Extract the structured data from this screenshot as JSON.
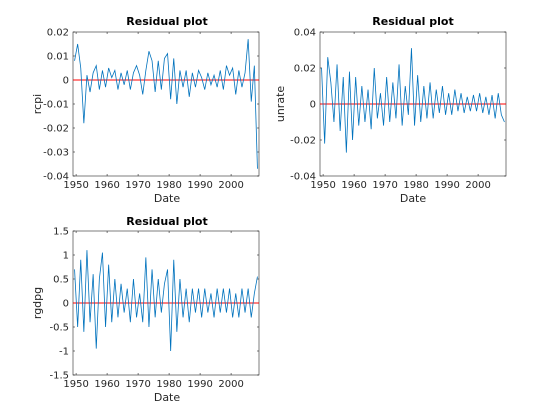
{
  "chart_data": [
    {
      "type": "line",
      "title": "Residual plot",
      "xlabel": "Date",
      "ylabel": "rcpi",
      "xlim": [
        1949,
        2009
      ],
      "ylim": [
        -0.04,
        0.02
      ],
      "xticks": [
        1950,
        1960,
        1970,
        1980,
        1990,
        2000
      ],
      "xtick_labels": [
        "1950",
        "1960",
        "1970",
        "1980",
        "1990",
        "2000"
      ],
      "yticks": [
        -0.04,
        -0.03,
        -0.02,
        -0.01,
        0,
        0.01,
        0.02
      ],
      "ytick_labels": [
        "-0.04",
        "-0.03",
        "-0.02",
        "-0.01",
        "0",
        "0.01",
        "0.02"
      ],
      "zero_line_color": "#ff0000",
      "series_color": "#0072bd",
      "series": [
        {
          "x": [
            1949.5,
            1950.5,
            1951.5,
            1952.5,
            1953.5,
            1954.5,
            1955.5,
            1956.5,
            1957.5,
            1958.5,
            1959.5,
            1960.5,
            1961.5,
            1962.5,
            1963.5,
            1964.5,
            1965.5,
            1966.5,
            1967.5,
            1968.5,
            1969.5,
            1970.5,
            1971.5,
            1972.5,
            1973.5,
            1974.5,
            1975.5,
            1976.5,
            1977.5,
            1978.5,
            1979.5,
            1980.5,
            1981.5,
            1982.5,
            1983.5,
            1984.5,
            1985.5,
            1986.5,
            1987.5,
            1988.5,
            1989.5,
            1990.5,
            1991.5,
            1992.5,
            1993.5,
            1994.5,
            1995.5,
            1996.5,
            1997.5,
            1998.5,
            1999.5,
            2000.5,
            2001.5,
            2002.5,
            2003.5,
            2004.5,
            2005.5,
            2006.5,
            2007.5,
            2008.5
          ],
          "y": [
            0.008,
            0.015,
            0.005,
            -0.018,
            0.002,
            -0.005,
            0.003,
            0.006,
            -0.004,
            0.004,
            -0.003,
            0.005,
            0.001,
            0.004,
            -0.004,
            0.003,
            -0.002,
            0.004,
            -0.004,
            0.003,
            0.006,
            0.002,
            -0.006,
            0.004,
            0.012,
            0.008,
            -0.005,
            0.008,
            -0.004,
            0.009,
            0.011,
            -0.008,
            0.009,
            -0.01,
            0.004,
            -0.003,
            0.004,
            -0.007,
            0.003,
            -0.003,
            0.004,
            0.001,
            -0.004,
            0.003,
            -0.002,
            0.002,
            -0.003,
            0.004,
            -0.004,
            0.006,
            0.002,
            0.005,
            -0.006,
            0.004,
            -0.003,
            0.003,
            0.017,
            -0.009,
            0.006,
            -0.037
          ]
        }
      ]
    },
    {
      "type": "line",
      "title": "Residual plot",
      "xlabel": "Date",
      "ylabel": "unrate",
      "xlim": [
        1949,
        2009
      ],
      "ylim": [
        -0.04,
        0.04
      ],
      "xticks": [
        1950,
        1960,
        1970,
        1980,
        1990,
        2000
      ],
      "xtick_labels": [
        "1950",
        "1960",
        "1970",
        "1980",
        "1990",
        "2000"
      ],
      "yticks": [
        -0.04,
        -0.02,
        0,
        0.02,
        0.04
      ],
      "ytick_labels": [
        "-0.04",
        "-0.02",
        "0",
        "0.02",
        "0.04"
      ],
      "zero_line_color": "#ff0000",
      "series_color": "#0072bd",
      "series": [
        {
          "x": [
            1949.5,
            1950.5,
            1951.5,
            1952.5,
            1953.5,
            1954.5,
            1955.5,
            1956.5,
            1957.5,
            1958.5,
            1959.5,
            1960.5,
            1961.5,
            1962.5,
            1963.5,
            1964.5,
            1965.5,
            1966.5,
            1967.5,
            1968.5,
            1969.5,
            1970.5,
            1971.5,
            1972.5,
            1973.5,
            1974.5,
            1975.5,
            1976.5,
            1977.5,
            1978.5,
            1979.5,
            1980.5,
            1981.5,
            1982.5,
            1983.5,
            1984.5,
            1985.5,
            1986.5,
            1987.5,
            1988.5,
            1989.5,
            1990.5,
            1991.5,
            1992.5,
            1993.5,
            1994.5,
            1995.5,
            1996.5,
            1997.5,
            1998.5,
            1999.5,
            2000.5,
            2001.5,
            2002.5,
            2003.5,
            2004.5,
            2005.5,
            2006.5,
            2007.5,
            2008.5
          ],
          "y": [
            0.02,
            -0.022,
            0.026,
            0.012,
            -0.01,
            0.022,
            -0.015,
            0.015,
            -0.027,
            0.018,
            -0.02,
            0.015,
            -0.012,
            0.01,
            -0.01,
            0.008,
            -0.014,
            0.02,
            -0.008,
            0.006,
            -0.012,
            0.015,
            -0.01,
            0.012,
            -0.008,
            0.022,
            -0.012,
            0.01,
            -0.006,
            0.031,
            -0.012,
            0.016,
            -0.01,
            0.01,
            -0.008,
            0.012,
            -0.008,
            0.008,
            -0.005,
            0.01,
            -0.006,
            0.006,
            -0.006,
            0.008,
            -0.004,
            0.006,
            -0.005,
            0.004,
            -0.004,
            0.005,
            -0.004,
            0.006,
            -0.005,
            0.004,
            -0.006,
            0.005,
            -0.008,
            0.006,
            -0.006,
            -0.01
          ]
        }
      ]
    },
    {
      "type": "line",
      "title": "Residual plot",
      "xlabel": "Date",
      "ylabel": "rgdpg",
      "xlim": [
        1949,
        2009
      ],
      "ylim": [
        -1.5,
        1.5
      ],
      "xticks": [
        1950,
        1960,
        1970,
        1980,
        1990,
        2000
      ],
      "xtick_labels": [
        "1950",
        "1960",
        "1970",
        "1980",
        "1990",
        "2000"
      ],
      "yticks": [
        -1.5,
        -1,
        -0.5,
        0,
        0.5,
        1,
        1.5
      ],
      "ytick_labels": [
        "-1.5",
        "-1",
        "-0.5",
        "0",
        "0.5",
        "1",
        "1.5"
      ],
      "zero_line_color": "#ff0000",
      "series_color": "#0072bd",
      "series": [
        {
          "x": [
            1949.5,
            1950.5,
            1951.5,
            1952.5,
            1953.5,
            1954.5,
            1955.5,
            1956.5,
            1957.5,
            1958.5,
            1959.5,
            1960.5,
            1961.5,
            1962.5,
            1963.5,
            1964.5,
            1965.5,
            1966.5,
            1967.5,
            1968.5,
            1969.5,
            1970.5,
            1971.5,
            1972.5,
            1973.5,
            1974.5,
            1975.5,
            1976.5,
            1977.5,
            1978.5,
            1979.5,
            1980.5,
            1981.5,
            1982.5,
            1983.5,
            1984.5,
            1985.5,
            1986.5,
            1987.5,
            1988.5,
            1989.5,
            1990.5,
            1991.5,
            1992.5,
            1993.5,
            1994.5,
            1995.5,
            1996.5,
            1997.5,
            1998.5,
            1999.5,
            2000.5,
            2001.5,
            2002.5,
            2003.5,
            2004.5,
            2005.5,
            2006.5,
            2007.5,
            2008.5
          ],
          "y": [
            0.7,
            -0.5,
            0.9,
            -0.6,
            1.1,
            -0.4,
            0.6,
            -0.95,
            0.5,
            1.05,
            -0.5,
            0.8,
            -0.4,
            0.5,
            -0.3,
            0.4,
            -0.2,
            0.3,
            -0.4,
            0.5,
            -0.3,
            0.2,
            -0.4,
            0.95,
            -0.5,
            0.7,
            -0.3,
            0.5,
            -0.2,
            0.4,
            0.7,
            -1.0,
            0.9,
            -0.6,
            0.5,
            -0.3,
            0.3,
            -0.4,
            0.3,
            -0.2,
            0.3,
            -0.3,
            0.3,
            -0.2,
            0.2,
            -0.3,
            0.3,
            -0.2,
            0.3,
            -0.2,
            0.3,
            -0.3,
            0.2,
            -0.3,
            0.3,
            -0.2,
            0.3,
            -0.3,
            0.2,
            0.55
          ]
        }
      ]
    }
  ]
}
